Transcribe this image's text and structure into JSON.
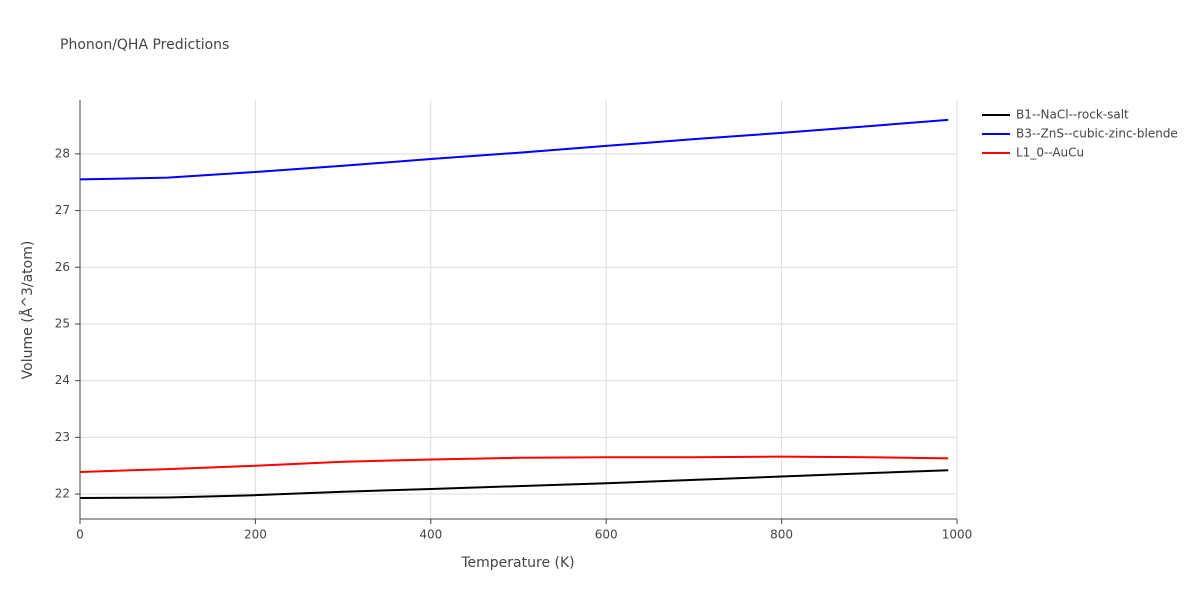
{
  "chart_data": {
    "type": "line",
    "title": "Phonon/QHA Predictions",
    "x_label": "Temperature (K)",
    "y_label": "Volume (Å^3/atom)",
    "x": [
      0,
      100,
      200,
      300,
      400,
      500,
      600,
      700,
      800,
      900,
      990
    ],
    "series": [
      {
        "name": "B1--NaCl--rock-salt",
        "color": "#000000",
        "values": [
          21.93,
          21.94,
          21.98,
          22.04,
          22.09,
          22.14,
          22.19,
          22.25,
          22.31,
          22.37,
          22.42
        ]
      },
      {
        "name": "B3--ZnS--cubic-zinc-blende",
        "color": "#0000ff",
        "values": [
          27.55,
          27.58,
          27.68,
          27.79,
          27.91,
          28.02,
          28.14,
          28.26,
          28.37,
          28.49,
          28.6
        ]
      },
      {
        "name": "L1_0--AuCu",
        "color": "#ff0000",
        "values": [
          22.39,
          22.44,
          22.5,
          22.57,
          22.61,
          22.64,
          22.65,
          22.65,
          22.66,
          22.65,
          22.63
        ]
      }
    ],
    "xlim": [
      0,
      1000
    ],
    "xticks": [
      0,
      200,
      400,
      600,
      800,
      1000
    ],
    "ylim": [
      21.56,
      28.95
    ],
    "yticks": [
      22,
      23,
      24,
      25,
      26,
      27,
      28
    ],
    "grid": true,
    "legend": "top-right"
  }
}
